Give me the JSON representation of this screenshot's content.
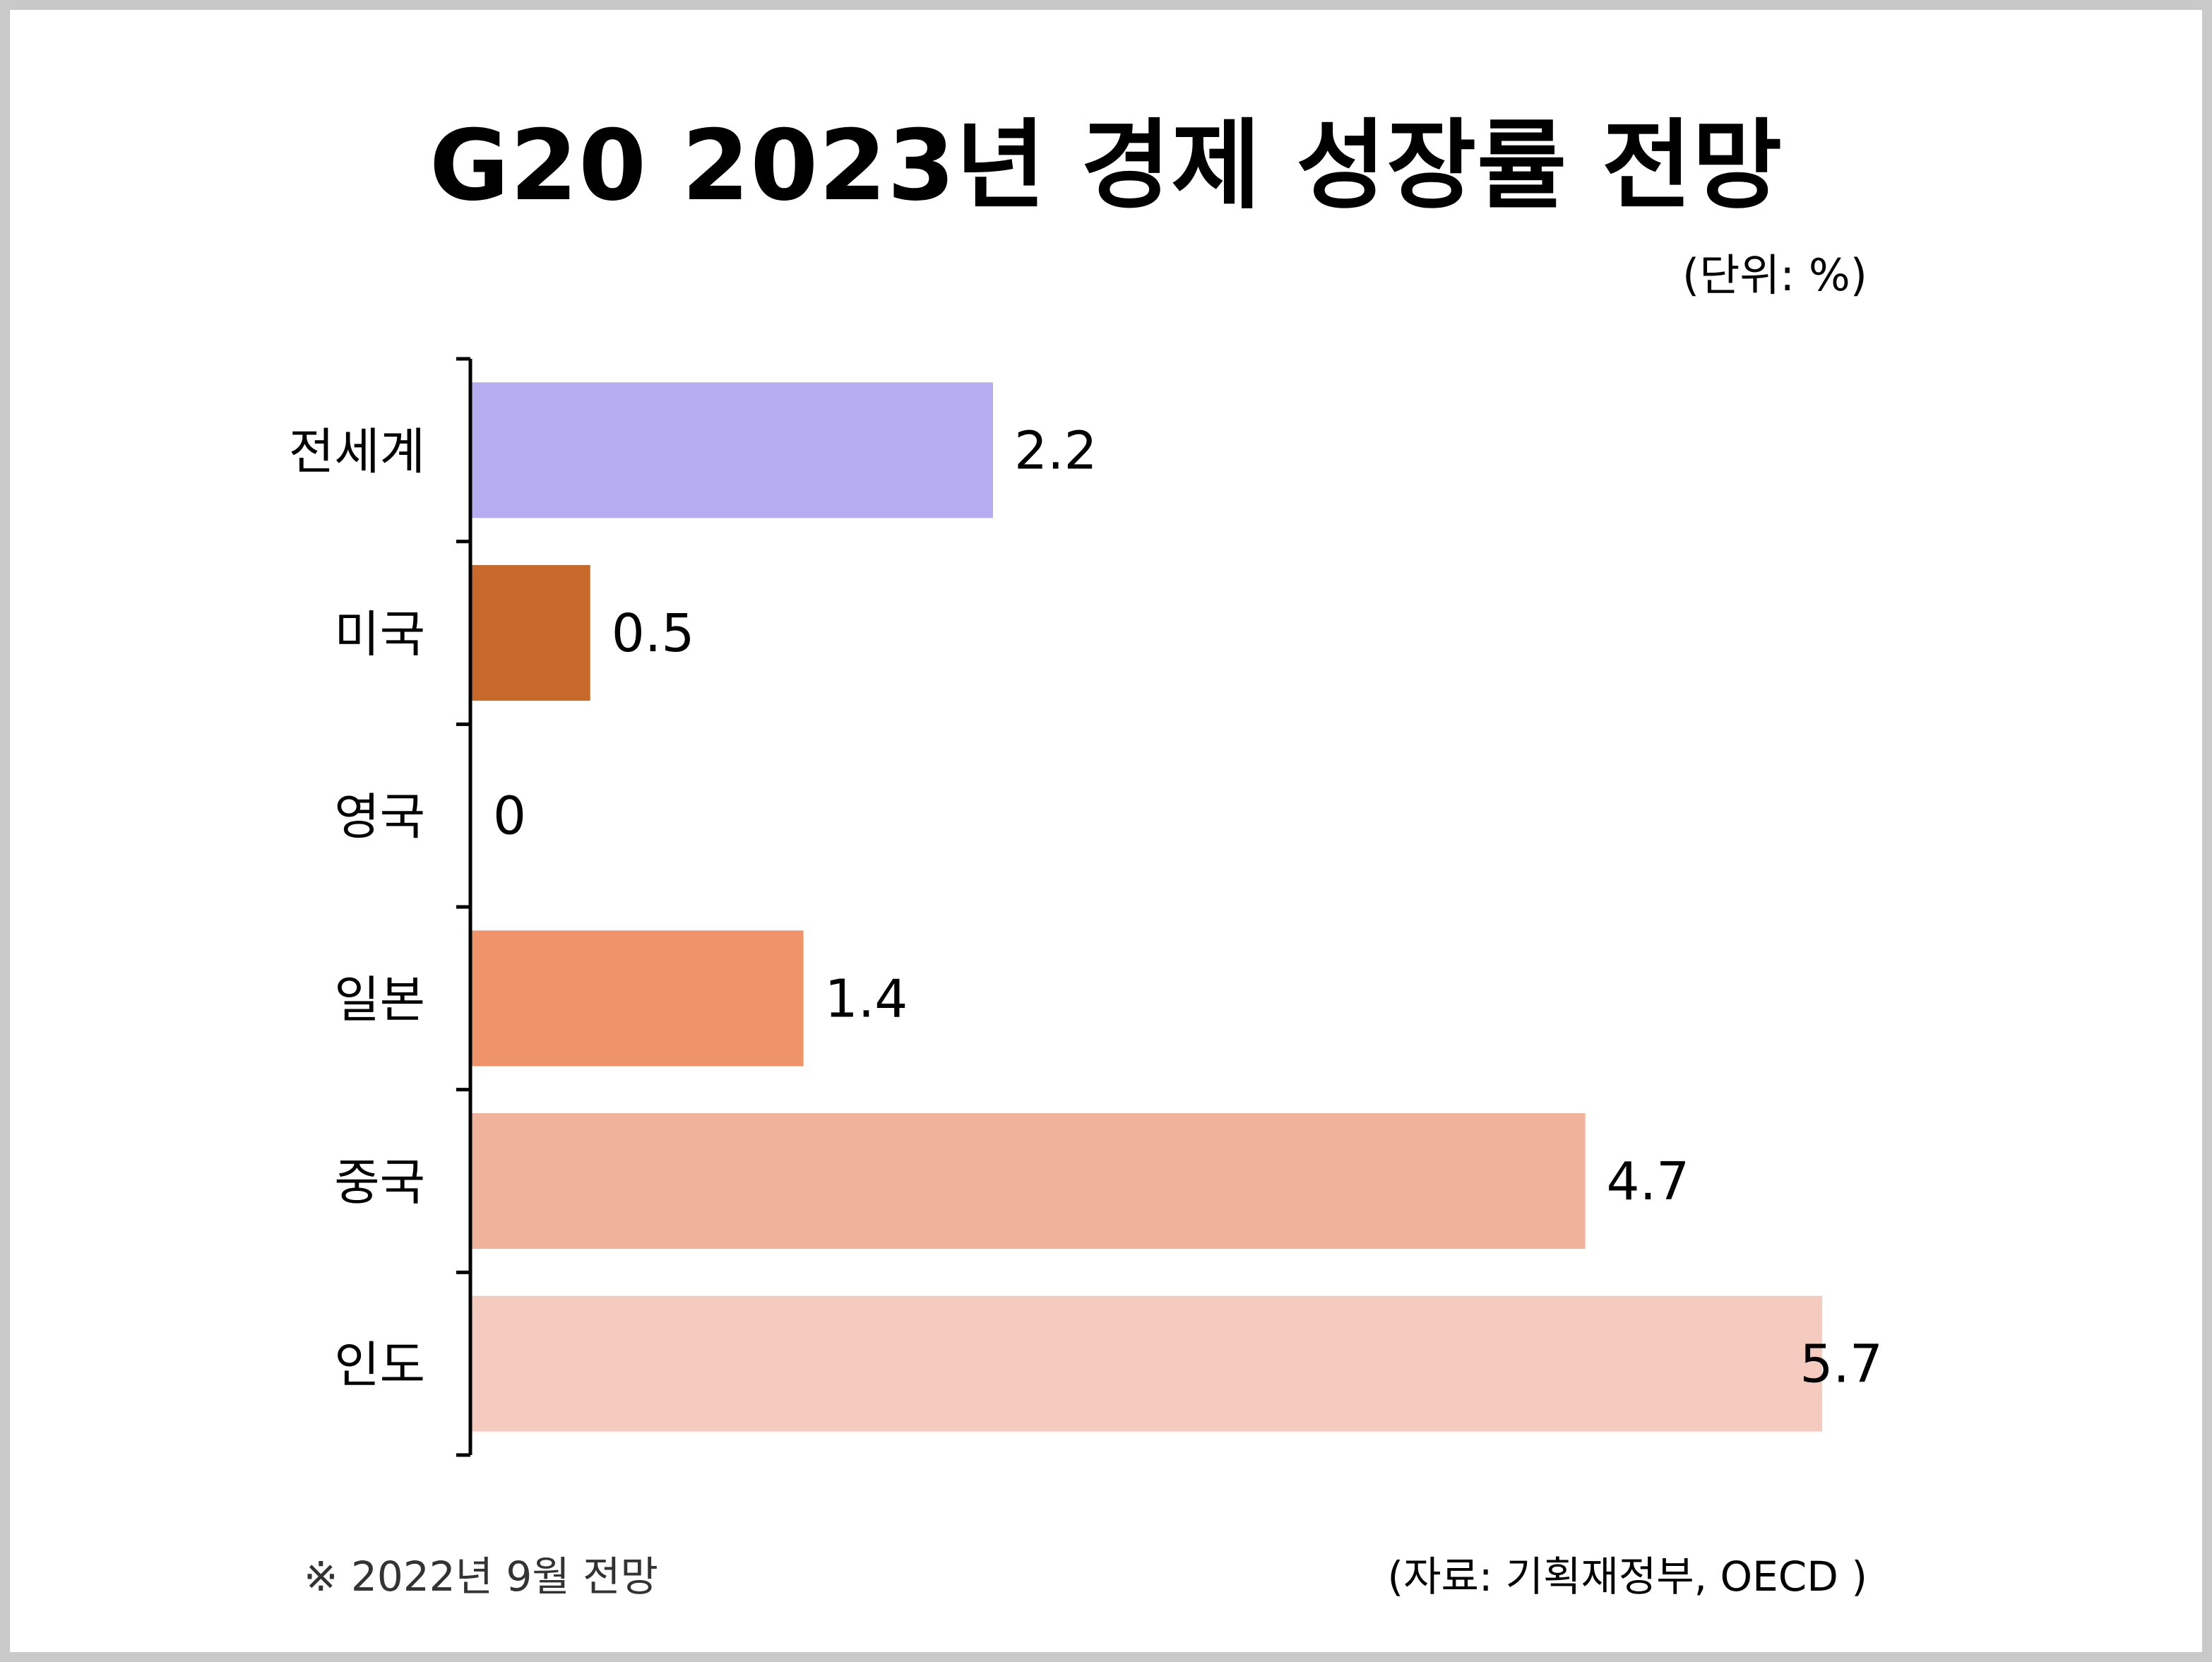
{
  "chart_data": {
    "type": "bar",
    "orientation": "horizontal",
    "title": "G20 2023년 경제 성장률 전망",
    "unit_label": "(단위: %)",
    "categories": [
      "전세계",
      "미국",
      "영국",
      "일본",
      "중국",
      "인도"
    ],
    "values": [
      2.2,
      0.5,
      0,
      1.4,
      4.7,
      5.7
    ],
    "value_labels": [
      "2.2",
      "0.5",
      "0",
      "1.4",
      "4.7",
      "5.7"
    ],
    "colors": [
      "#b5acf2",
      "#c8692b",
      "#c8692b",
      "#ef936a",
      "#f1b29c",
      "#f6cbbf"
    ],
    "xlim": [
      0,
      5.7
    ],
    "grid": false,
    "legend": "none"
  },
  "footer": {
    "note": "※ 2022년 9월 전망",
    "source": "(자료: 기획재정부, OECD )"
  }
}
